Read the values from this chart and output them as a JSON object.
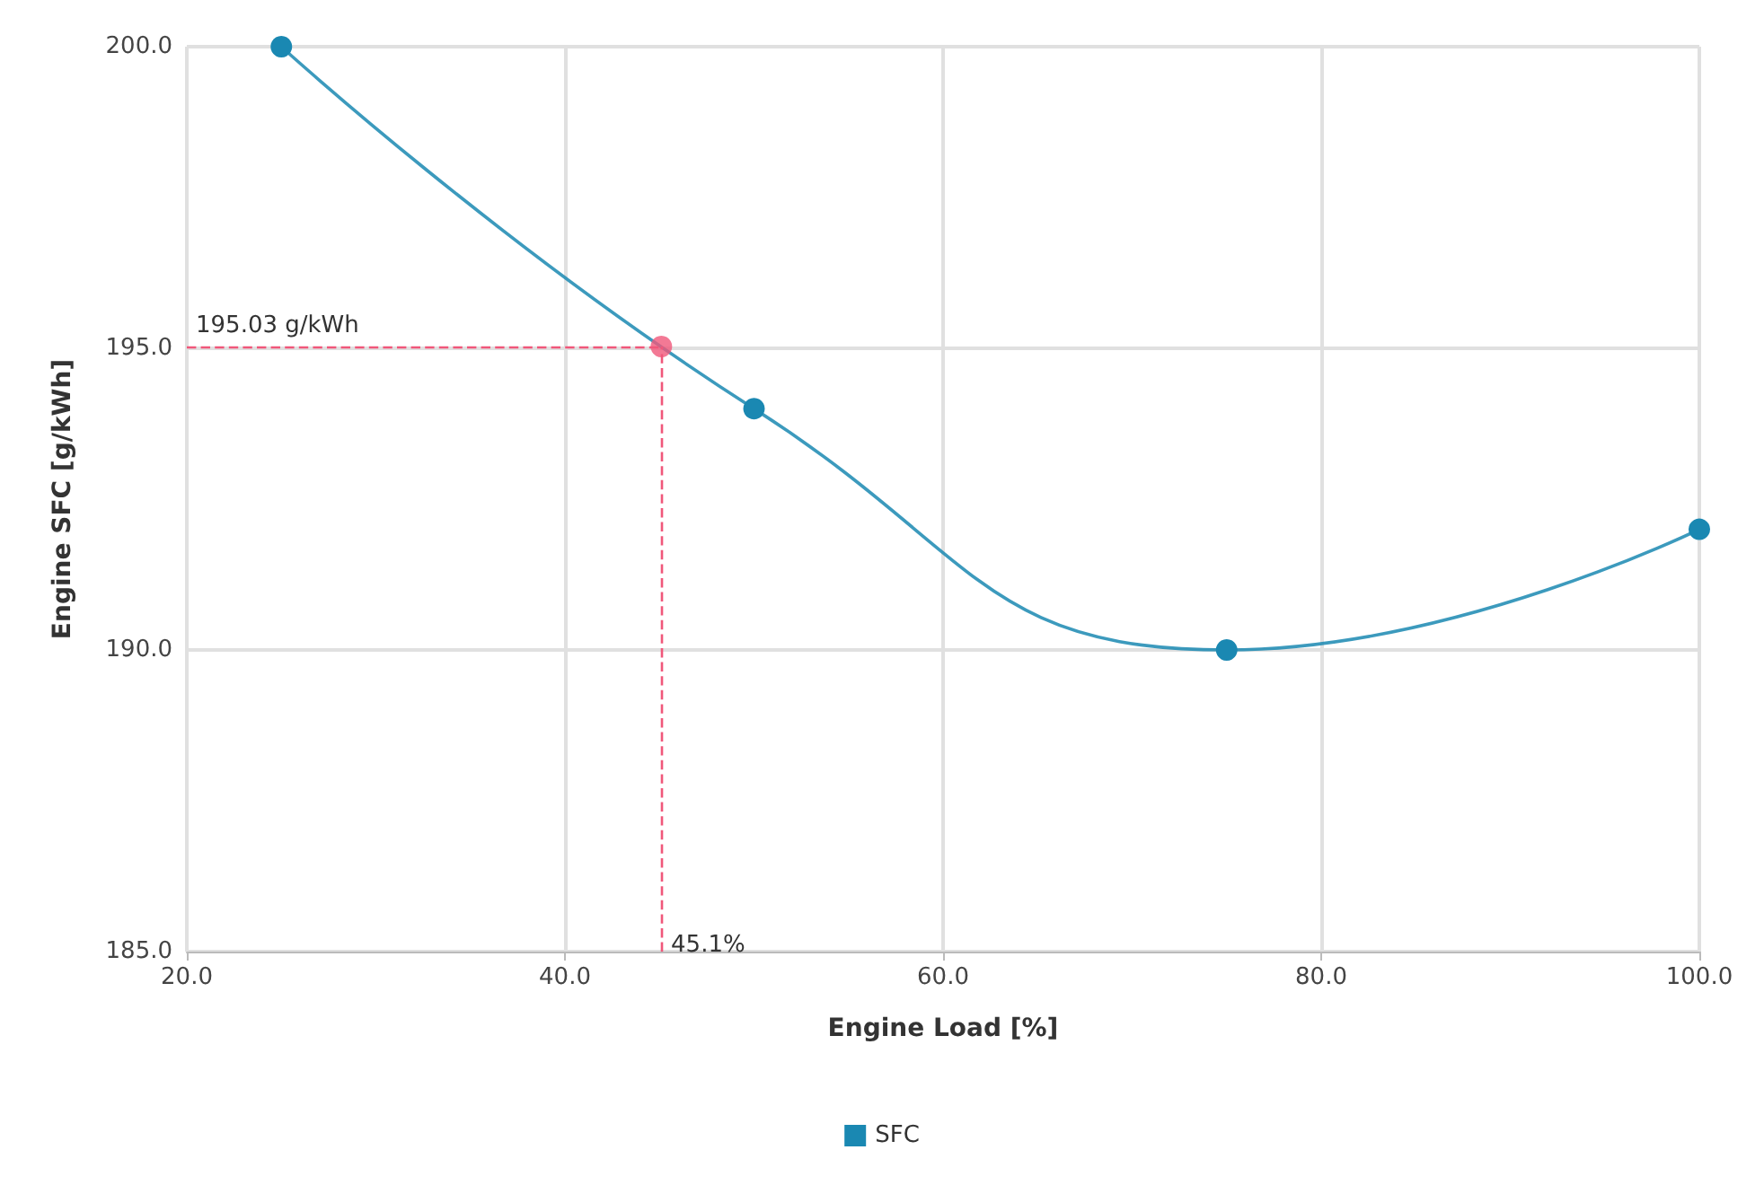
{
  "chart_data": {
    "type": "line",
    "xlabel": "Engine Load [%]",
    "ylabel": "Engine SFC [g/kWh]",
    "xlim": [
      20,
      100
    ],
    "xticks": [
      {
        "value": 20,
        "label": "20.0"
      },
      {
        "value": 40,
        "label": "40.0"
      },
      {
        "value": 60,
        "label": "60.0"
      },
      {
        "value": 80,
        "label": "80.0"
      },
      {
        "value": 100,
        "label": "100.0"
      }
    ],
    "ylim": [
      185,
      200
    ],
    "yticks": [
      {
        "value": 185,
        "label": "185.0"
      },
      {
        "value": 190,
        "label": "190.0"
      },
      {
        "value": 195,
        "label": "195.0"
      },
      {
        "value": 200,
        "label": "200.0"
      }
    ],
    "series": [
      {
        "name": "SFC",
        "color": "#1a88b2",
        "x": [
          25,
          50,
          75,
          100
        ],
        "values": [
          200,
          194,
          190,
          192
        ]
      },
      {
        "type": "scatter",
        "color": "#f0577a",
        "x": [
          45.1
        ],
        "values": [
          195.03
        ]
      }
    ],
    "ref_lines": [
      {
        "axis": "x",
        "value": 45.1,
        "label": "45.1%",
        "color": "#f0577a",
        "line_style": "dashed"
      },
      {
        "axis": "y",
        "value": 195.03,
        "label": "195.03 g/kWh",
        "color": "#f0577a",
        "line_style": "dashed"
      }
    ],
    "grid": true,
    "legend": "bottom",
    "marker": "circle"
  }
}
